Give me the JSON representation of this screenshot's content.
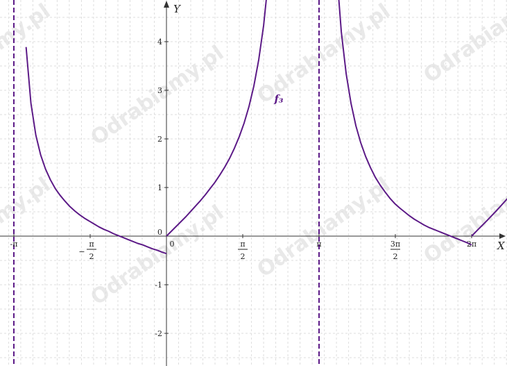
{
  "chart_data": {
    "type": "line",
    "title": "",
    "xlabel": "X",
    "ylabel": "Y",
    "xlim": [
      -3.1416,
      7.6
    ],
    "ylim": [
      -2.6,
      4.9
    ],
    "grid": true,
    "x_ticks": [
      {
        "value": -3.1416,
        "label": "-π",
        "kind": "plain"
      },
      {
        "value": -1.5708,
        "label": "−π/2",
        "kind": "frac",
        "num": "π",
        "den": "2",
        "neg": true
      },
      {
        "value": 0,
        "label": "0",
        "kind": "plain"
      },
      {
        "value": 1.5708,
        "label": "π/2",
        "kind": "frac",
        "num": "π",
        "den": "2",
        "neg": false
      },
      {
        "value": 3.1416,
        "label": "π",
        "kind": "plain"
      },
      {
        "value": 4.7124,
        "label": "3π/2",
        "kind": "frac",
        "num": "3π",
        "den": "2",
        "neg": false
      },
      {
        "value": 6.2832,
        "label": "2π",
        "kind": "plain"
      }
    ],
    "y_ticks": [
      {
        "value": -2,
        "label": "-2"
      },
      {
        "value": -1,
        "label": "-1"
      },
      {
        "value": 0,
        "label": "0"
      },
      {
        "value": 1,
        "label": "1"
      },
      {
        "value": 2,
        "label": "2"
      },
      {
        "value": 3,
        "label": "3"
      },
      {
        "value": 4,
        "label": "4"
      }
    ],
    "asymptotes": [
      -3.1416,
      3.1416
    ],
    "series": [
      {
        "name": "f₃",
        "color": "#5c1a87",
        "label_at": {
          "x": 2.22,
          "y": 2.75
        },
        "segments": [
          {
            "x": [
              -2.89,
              -2.79,
              -2.69,
              -2.59,
              -2.49,
              -2.39,
              -2.29,
              -2.19,
              -2.09,
              -1.99,
              -1.89,
              -1.79,
              -1.69,
              -1.59,
              -1.49,
              -1.39,
              -1.29,
              -1.19,
              -1.09,
              -0.99,
              -0.89,
              -0.79,
              -0.69,
              -0.59,
              -0.49,
              -0.39,
              -0.29,
              -0.19,
              -0.09,
              0
            ],
            "y": [
              3.89,
              2.73,
              2.08,
              1.67,
              1.38,
              1.16,
              0.98,
              0.84,
              0.72,
              0.61,
              0.52,
              0.44,
              0.37,
              0.31,
              0.25,
              0.19,
              0.14,
              0.1,
              0.05,
              0.01,
              -0.03,
              -0.07,
              -0.11,
              -0.15,
              -0.18,
              -0.22,
              -0.26,
              -0.29,
              -0.33,
              -0.36
            ]
          },
          {
            "x": [
              0,
              0.1,
              0.2,
              0.3,
              0.4,
              0.5,
              0.6,
              0.7,
              0.8,
              0.9,
              1,
              1.1,
              1.2,
              1.3,
              1.4,
              1.5,
              1.6,
              1.7,
              1.8,
              1.9,
              2,
              2.1,
              2.2,
              2.3,
              2.4,
              2.5,
              2.6,
              2.7,
              2.8,
              2.9,
              2.95
            ],
            "y": [
              0,
              0.1,
              0.2,
              0.3,
              0.4,
              0.51,
              0.62,
              0.73,
              0.85,
              0.98,
              1.11,
              1.26,
              1.42,
              1.6,
              1.81,
              2.05,
              2.33,
              2.67,
              3.09,
              3.63,
              4.33,
              5.3,
              6.7,
              8.9,
              12.5,
              20,
              40,
              80,
              160,
              300,
              500
            ]
          },
          {
            "x": [
              3.35,
              3.4,
              3.5,
              3.6,
              3.7,
              3.8,
              3.9,
              4,
              4.1,
              4.2,
              4.3,
              4.4,
              4.5,
              4.6,
              4.7,
              4.8,
              4.9,
              5,
              5.1,
              5.2,
              5.3,
              5.4,
              5.5,
              5.6,
              5.7,
              5.8,
              5.9,
              6,
              6.1,
              6.2,
              6.2832
            ],
            "y": [
              9.6,
              7.7,
              5.5,
              4.2,
              3.34,
              2.73,
              2.27,
              1.92,
              1.64,
              1.41,
              1.21,
              1.05,
              0.91,
              0.78,
              0.67,
              0.58,
              0.5,
              0.42,
              0.35,
              0.29,
              0.23,
              0.18,
              0.14,
              0.1,
              0.06,
              0.02,
              -0.02,
              -0.06,
              -0.1,
              -0.14,
              -0.18
            ]
          },
          {
            "x": [
              6.2832,
              6.4,
              6.6,
              6.8,
              7,
              7.2,
              7.4,
              7.6
            ],
            "y": [
              0,
              0.12,
              0.32,
              0.53,
              0.75,
              0.97,
              1.21,
              1.46
            ]
          }
        ]
      }
    ]
  },
  "watermark": {
    "text": "Odrabiamy",
    "suffix": ".pl",
    "color": "#d8d8d8"
  }
}
